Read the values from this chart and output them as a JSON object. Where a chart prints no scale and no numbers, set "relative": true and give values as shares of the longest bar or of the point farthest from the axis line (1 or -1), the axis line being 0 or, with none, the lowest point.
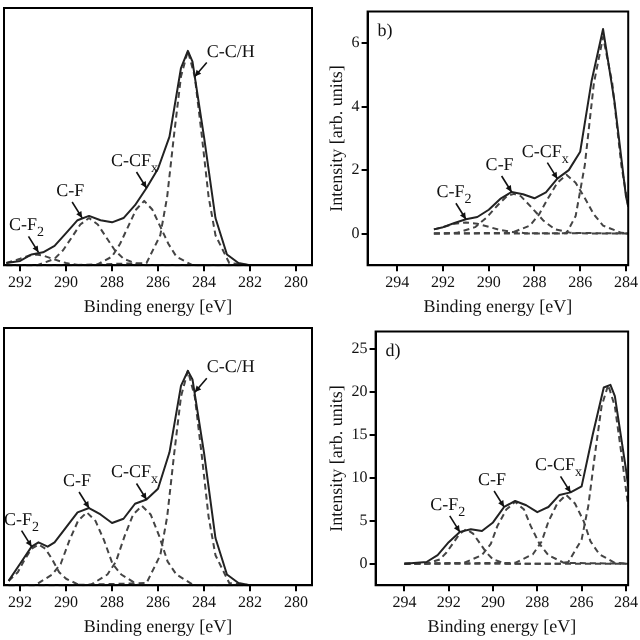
{
  "chart_data": [
    {
      "type": "line",
      "relative": true,
      "xlabel": "Binding energy [eV]",
      "xlim": [
        292.7,
        279.3
      ],
      "xticks": [
        292,
        290,
        288,
        286,
        284,
        282,
        280
      ],
      "tick_labels": "x",
      "grid": false,
      "legend": false,
      "marker": "none",
      "annotations": [
        {
          "text": "C-F$_{2}$",
          "x": 291.2,
          "y": 0.06
        },
        {
          "text": "C-F",
          "x": 289.3,
          "y": 0.22
        },
        {
          "text": "C-CF$_{x}$",
          "x": 286.5,
          "y": 0.36
        },
        {
          "text": "C-C/H",
          "x": 284.4,
          "y": 0.88
        }
      ],
      "series": [
        {
          "color": "#222222",
          "line_style": "solid",
          "x": [
            292.6,
            292,
            291.5,
            291,
            290.5,
            290,
            289.5,
            289,
            288.5,
            288,
            287.5,
            287,
            286.5,
            286,
            285.5,
            285,
            284.7,
            284.5,
            284,
            283.5,
            283,
            282.5,
            282
          ],
          "values": [
            0.01,
            0.02,
            0.05,
            0.06,
            0.09,
            0.15,
            0.21,
            0.23,
            0.21,
            0.2,
            0.22,
            0.28,
            0.36,
            0.45,
            0.6,
            0.92,
            1,
            0.95,
            0.6,
            0.22,
            0.05,
            0.01,
            0
          ]
        },
        {
          "color": "#444444",
          "line_style": "dashed",
          "x": [
            292.6,
            290,
            286.5,
            285.9,
            285.6,
            285.3,
            285,
            284.7,
            284.4,
            284.1,
            283.8,
            283.5,
            282.9,
            282
          ],
          "values": [
            0,
            0,
            0.01,
            0.14,
            0.32,
            0.61,
            0.88,
            1,
            0.88,
            0.61,
            0.32,
            0.14,
            0.01,
            0
          ]
        },
        {
          "color": "#444444",
          "line_style": "dashed",
          "x": [
            292.6,
            288.7,
            288,
            287.65,
            287.3,
            286.95,
            286.6,
            286.25,
            285.9,
            285.55,
            285.2,
            284.5,
            282
          ],
          "values": [
            0,
            0,
            0.04,
            0.1,
            0.18,
            0.26,
            0.3,
            0.26,
            0.18,
            0.1,
            0.04,
            0,
            0
          ]
        },
        {
          "color": "#444444",
          "line_style": "dashed",
          "x": [
            292.6,
            291.25,
            290.5,
            290.13,
            289.75,
            289.38,
            289,
            288.62,
            288.25,
            287.88,
            287.5,
            286.75,
            282
          ],
          "values": [
            0,
            0,
            0.03,
            0.07,
            0.13,
            0.19,
            0.22,
            0.19,
            0.13,
            0.07,
            0.03,
            0,
            0
          ]
        },
        {
          "color": "#444444",
          "line_style": "dashed",
          "x": [
            292.6,
            292,
            291.6,
            291.3,
            291,
            290.6,
            290,
            289.4,
            282
          ],
          "values": [
            0.01,
            0.03,
            0.045,
            0.05,
            0.045,
            0.03,
            0.01,
            0,
            0
          ]
        }
      ]
    },
    {
      "type": "line",
      "xlabel": "Binding energy [eV]",
      "ylabel": "Intensity [arb. units]",
      "xlim": [
        295.3,
        283.9
      ],
      "xticks": [
        294,
        292,
        290,
        288,
        286,
        284
      ],
      "ylim": [
        -1,
        7
      ],
      "yticks": [
        0,
        2,
        4,
        6
      ],
      "grid": false,
      "legend": false,
      "marker": "none",
      "annotations": [
        "b)",
        {
          "text": "C-F$_{2}$",
          "x": 291,
          "y": 0.45
        },
        {
          "text": "C-F",
          "x": 289,
          "y": 1.31
        },
        {
          "text": "C-CF$_{x}$",
          "x": 287,
          "y": 1.73
        }
      ],
      "series": [
        {
          "color": "#222222",
          "line_style": "solid",
          "x": [
            292.4,
            292,
            291.5,
            291,
            290.5,
            290,
            289.5,
            289,
            288.5,
            288,
            287.5,
            287,
            286.5,
            286,
            285.5,
            285,
            284.5,
            284,
            283.9
          ],
          "values": [
            0.13,
            0.2,
            0.33,
            0.45,
            0.52,
            0.75,
            1.09,
            1.31,
            1.24,
            1.11,
            1.3,
            1.73,
            2,
            2.58,
            4.82,
            6.45,
            4.16,
            1.18,
            0.85
          ]
        },
        {
          "color": "#444444",
          "line_style": "dashed",
          "x": [
            292.4,
            287,
            286.6,
            286.2,
            285.8,
            285.4,
            285,
            284.6,
            284.2,
            283.9
          ],
          "values": [
            0,
            0,
            0.01,
            0.55,
            2.15,
            4.75,
            6.2,
            4.75,
            2.15,
            0.85
          ]
        },
        {
          "color": "#444444",
          "line_style": "dashed",
          "x": [
            292.4,
            289,
            288.2,
            287.8,
            287.4,
            287,
            286.6,
            286.2,
            285.8,
            285.4,
            285,
            284.2,
            283.9
          ],
          "values": [
            0,
            0.02,
            0.25,
            0.6,
            1.12,
            1.6,
            1.85,
            1.6,
            1.12,
            0.6,
            0.25,
            0.02,
            0
          ]
        },
        {
          "color": "#444444",
          "line_style": "dashed",
          "x": [
            292.4,
            291.4,
            290.6,
            290.1,
            289.6,
            289.2,
            288.9,
            288.6,
            288.1,
            287.6,
            287.1,
            286.4,
            283.9
          ],
          "values": [
            0,
            0.02,
            0.2,
            0.5,
            0.9,
            1.18,
            1.25,
            1.18,
            0.8,
            0.4,
            0.13,
            0.02,
            0
          ]
        },
        {
          "color": "#444444",
          "line_style": "dashed",
          "x": [
            292.4,
            292,
            291.5,
            291,
            290.5,
            290,
            289.5,
            289,
            288.4,
            283.9
          ],
          "values": [
            0.13,
            0.2,
            0.31,
            0.35,
            0.31,
            0.21,
            0.11,
            0.05,
            0.01,
            0
          ]
        }
      ]
    },
    {
      "type": "line",
      "relative": true,
      "xlabel": "Binding energy [eV]",
      "xlim": [
        292.7,
        279.3
      ],
      "xticks": [
        292,
        290,
        288,
        286,
        284,
        282,
        280
      ],
      "tick_labels": "x",
      "grid": false,
      "legend": false,
      "marker": "none",
      "annotations": [
        {
          "text": "C-F$_{2}$",
          "x": 291.5,
          "y": 0.18
        },
        {
          "text": "C-F",
          "x": 289,
          "y": 0.36
        },
        {
          "text": "C-CF$_{x}$",
          "x": 286.5,
          "y": 0.4
        },
        {
          "text": "C-C/H",
          "x": 284.4,
          "y": 0.9
        }
      ],
      "series": [
        {
          "color": "#222222",
          "line_style": "solid",
          "x": [
            292.5,
            292,
            291.5,
            291.2,
            290.8,
            290.5,
            290,
            289.5,
            289,
            288.5,
            288,
            287.5,
            287,
            286.5,
            286,
            285.5,
            285,
            284.7,
            284.5,
            284,
            283.5,
            283,
            282.5,
            282
          ],
          "values": [
            0.02,
            0.1,
            0.18,
            0.2,
            0.18,
            0.2,
            0.27,
            0.34,
            0.36,
            0.33,
            0.29,
            0.31,
            0.38,
            0.4,
            0.45,
            0.62,
            0.93,
            1,
            0.96,
            0.62,
            0.22,
            0.05,
            0.01,
            0
          ]
        },
        {
          "color": "#444444",
          "line_style": "dashed",
          "x": [
            292.5,
            290,
            286.5,
            285.9,
            285.6,
            285.3,
            285,
            284.7,
            284.4,
            284.1,
            283.8,
            283.5,
            282.9,
            282
          ],
          "values": [
            0,
            0,
            0.01,
            0.14,
            0.32,
            0.61,
            0.88,
            1,
            0.88,
            0.61,
            0.32,
            0.14,
            0.01,
            0
          ]
        },
        {
          "color": "#444444",
          "line_style": "dashed",
          "x": [
            292.5,
            288.95,
            288.2,
            287.83,
            287.45,
            287.08,
            286.7,
            286.32,
            285.95,
            285.58,
            285.2,
            284.45,
            282
          ],
          "values": [
            0,
            0,
            0.05,
            0.11,
            0.23,
            0.33,
            0.37,
            0.33,
            0.23,
            0.11,
            0.05,
            0,
            0
          ]
        },
        {
          "color": "#444444",
          "line_style": "dashed",
          "x": [
            292.5,
            291.35,
            290.6,
            290.23,
            289.85,
            289.48,
            289.1,
            288.72,
            288.35,
            287.98,
            287.6,
            286.85,
            282
          ],
          "values": [
            0,
            0,
            0.05,
            0.1,
            0.21,
            0.3,
            0.34,
            0.3,
            0.21,
            0.1,
            0.05,
            0,
            0
          ]
        },
        {
          "color": "#444444",
          "line_style": "dashed",
          "x": [
            292.5,
            292.4,
            292.1,
            291.8,
            291.5,
            291.2,
            290.9,
            290.6,
            290.3,
            290,
            289.4,
            282
          ],
          "values": [
            0.02,
            0.03,
            0.06,
            0.12,
            0.17,
            0.19,
            0.17,
            0.12,
            0.06,
            0.03,
            0,
            0
          ]
        }
      ]
    },
    {
      "type": "line",
      "xlabel": "Binding energy [eV]",
      "ylabel": "Intensity [arb. units]",
      "xlim": [
        295.3,
        283.9
      ],
      "xticks": [
        294,
        292,
        290,
        288,
        286,
        284
      ],
      "ylim": [
        -2.5,
        27
      ],
      "yticks": [
        0,
        5,
        10,
        15,
        20,
        25
      ],
      "grid": false,
      "legend": false,
      "marker": "none",
      "annotations": [
        "d)",
        {
          "text": "C-F$_{2}$",
          "x": 291.5,
          "y": 3.7
        },
        {
          "text": "C-F",
          "x": 289.5,
          "y": 6.6
        },
        {
          "text": "C-CF$_{x}$",
          "x": 286.5,
          "y": 8.3
        }
      ],
      "series": [
        {
          "color": "#222222",
          "line_style": "solid",
          "x": [
            294,
            293,
            292.5,
            292,
            291.5,
            291,
            290.5,
            290,
            289.5,
            289,
            288.5,
            288,
            287.5,
            287,
            286.5,
            286,
            285.5,
            285,
            284.7,
            284.5,
            284,
            283.9
          ],
          "values": [
            0,
            0.2,
            1,
            2.5,
            3.7,
            4,
            3.8,
            4.8,
            6.6,
            7.3,
            6.8,
            6,
            6.6,
            8,
            8.3,
            9,
            15,
            20.5,
            20.8,
            19.5,
            11,
            9
          ]
        },
        {
          "color": "#444444",
          "line_style": "dashed",
          "x": [
            294,
            287,
            286.6,
            286,
            285.7,
            285.4,
            285.1,
            284.8,
            284.5,
            284.2,
            283.9
          ],
          "values": [
            0,
            0,
            0.2,
            2.8,
            6.7,
            12.7,
            18.3,
            20.8,
            18.3,
            12.7,
            6.7
          ]
        },
        {
          "color": "#444444",
          "line_style": "dashed",
          "x": [
            294,
            289,
            288.2,
            287.8,
            287.5,
            287.1,
            286.7,
            286.3,
            285.9,
            285.6,
            285.2,
            284.5,
            283.9
          ],
          "values": [
            0,
            0.1,
            1.1,
            2.6,
            4.9,
            7,
            8,
            7,
            4.9,
            2.6,
            1.1,
            0.1,
            0
          ]
        },
        {
          "color": "#444444",
          "line_style": "dashed",
          "x": [
            294,
            291.3,
            290.5,
            290.1,
            289.8,
            289.4,
            289,
            288.6,
            288.3,
            287.9,
            287.5,
            286.8,
            283.9
          ],
          "values": [
            0,
            0.1,
            1,
            2.3,
            4.4,
            6.3,
            7.2,
            6.3,
            4.4,
            2.3,
            1,
            0.1,
            0
          ]
        },
        {
          "color": "#444444",
          "line_style": "dashed",
          "x": [
            294,
            293,
            292.4,
            292.1,
            291.8,
            291.5,
            291.2,
            290.9,
            290.6,
            290.3,
            290,
            289.4,
            283.9
          ],
          "values": [
            0,
            0,
            0.5,
            1.3,
            2.4,
            3.5,
            4,
            3.5,
            2.4,
            1.3,
            0.5,
            0,
            0
          ]
        }
      ]
    }
  ]
}
